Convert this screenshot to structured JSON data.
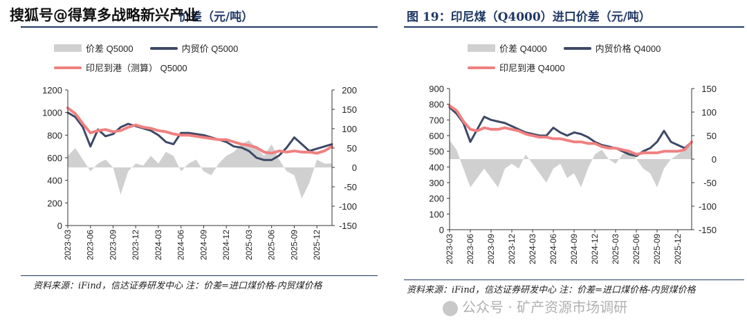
{
  "overlay": {
    "top_watermark": "搜狐号@得算多战略新兴产业",
    "bottom_watermark": "公众号 · 矿产资源市场调研"
  },
  "left": {
    "title": "价差（元/吨）",
    "legend": {
      "spread": "价差 Q5000",
      "domestic": "内贸价 Q5000",
      "landed": "印尼到港（测算） Q5000"
    },
    "source": "资料来源：iFind，信达证券研发中心 注：价差=进口煤价格-内贸煤价格"
  },
  "right": {
    "title": "图 19：印尼煤（Q4000）进口价差（元/吨）",
    "legend": {
      "spread": "价差 Q4000",
      "domestic": "内贸价格 Q4000",
      "landed": "印尼到港 Q4000"
    },
    "source": "资料来源：iFind，信达证券研发中心 注：价差=进口煤价格-内贸煤价格"
  },
  "colors": {
    "spread": "#d0d0d0",
    "domestic": "#3d4865",
    "landed": "#f08080",
    "axis": "#333333"
  },
  "chart_data": [
    {
      "type": "line",
      "title": "价差（元/吨）",
      "x_ticks": [
        "2023-03",
        "2023-06",
        "2023-09",
        "2023-12",
        "2024-03",
        "2024-06",
        "2024-09",
        "2024-12",
        "2025-03",
        "2025-06",
        "2025-09",
        "2025-12"
      ],
      "y_left_ticks": [
        "0",
        "200",
        "400",
        "600",
        "800",
        "1000",
        "1200"
      ],
      "y_right_ticks": [
        "-150",
        "-100",
        "-50",
        "0",
        "50",
        "100",
        "150",
        "200"
      ],
      "ylim_left": [
        0,
        1200
      ],
      "ylim_right": [
        -150,
        200
      ],
      "x": [
        "2023-03",
        "2023-04",
        "2023-05",
        "2023-06",
        "2023-07",
        "2023-08",
        "2023-09",
        "2023-10",
        "2023-11",
        "2023-12",
        "2024-01",
        "2024-02",
        "2024-03",
        "2024-04",
        "2024-05",
        "2024-06",
        "2024-07",
        "2024-08",
        "2024-09",
        "2024-10",
        "2024-11",
        "2024-12",
        "2025-01",
        "2025-02",
        "2025-03",
        "2025-04",
        "2025-05",
        "2025-06",
        "2025-07",
        "2025-08",
        "2025-09",
        "2025-10",
        "2025-11",
        "2025-12",
        "2026-01",
        "2026-02"
      ],
      "series": [
        {
          "name": "价差 Q5000",
          "axis": "right",
          "style": "area",
          "values": [
            30,
            50,
            20,
            -10,
            10,
            20,
            0,
            -70,
            -10,
            10,
            5,
            30,
            10,
            40,
            30,
            -10,
            10,
            20,
            -10,
            -20,
            10,
            30,
            40,
            60,
            70,
            50,
            30,
            60,
            20,
            -10,
            -20,
            -80,
            -40,
            20,
            10,
            10
          ]
        },
        {
          "name": "内贸价 Q5000",
          "axis": "left",
          "style": "line",
          "values": [
            1000,
            960,
            870,
            700,
            850,
            790,
            810,
            870,
            900,
            880,
            860,
            840,
            800,
            740,
            720,
            820,
            820,
            810,
            800,
            780,
            760,
            740,
            700,
            690,
            660,
            600,
            580,
            580,
            620,
            690,
            780,
            720,
            660,
            680,
            700,
            720
          ]
        },
        {
          "name": "印尼到港（测算） Q5000",
          "axis": "left",
          "style": "line",
          "values": [
            1040,
            990,
            900,
            820,
            840,
            850,
            830,
            840,
            870,
            890,
            870,
            860,
            840,
            830,
            810,
            800,
            800,
            790,
            780,
            770,
            760,
            760,
            740,
            720,
            710,
            690,
            650,
            640,
            660,
            650,
            660,
            650,
            650,
            640,
            660,
            700
          ]
        }
      ]
    },
    {
      "type": "line",
      "title": "图 19：印尼煤（Q4000）进口价差（元/吨）",
      "x_ticks": [
        "2023-03",
        "2023-06",
        "2023-09",
        "2023-12",
        "2024-03",
        "2024-06",
        "2024-09",
        "2024-12",
        "2025-03",
        "2025-06",
        "2025-09",
        "2025-12"
      ],
      "y_left_ticks": [
        "0",
        "100",
        "200",
        "300",
        "400",
        "500",
        "600",
        "700",
        "800",
        "900"
      ],
      "y_right_ticks": [
        "-150",
        "-100",
        "-50",
        "0",
        "50",
        "100",
        "150"
      ],
      "ylim_left": [
        0,
        900
      ],
      "ylim_right": [
        -150,
        150
      ],
      "x": [
        "2023-03",
        "2023-04",
        "2023-05",
        "2023-06",
        "2023-07",
        "2023-08",
        "2023-09",
        "2023-10",
        "2023-11",
        "2023-12",
        "2024-01",
        "2024-02",
        "2024-03",
        "2024-04",
        "2024-05",
        "2024-06",
        "2024-07",
        "2024-08",
        "2024-09",
        "2024-10",
        "2024-11",
        "2024-12",
        "2025-01",
        "2025-02",
        "2025-03",
        "2025-04",
        "2025-05",
        "2025-06",
        "2025-07",
        "2025-08",
        "2025-09",
        "2025-10",
        "2025-11",
        "2025-12",
        "2026-01",
        "2026-02"
      ],
      "series": [
        {
          "name": "价差 Q4000",
          "axis": "right",
          "style": "area",
          "values": [
            40,
            20,
            -20,
            -60,
            -40,
            -20,
            -40,
            -60,
            -20,
            -10,
            -20,
            10,
            -10,
            -30,
            -50,
            -20,
            -10,
            -40,
            -30,
            -60,
            -20,
            10,
            20,
            0,
            -10,
            10,
            20,
            0,
            -20,
            -30,
            -60,
            -20,
            0,
            10,
            20,
            30
          ]
        },
        {
          "name": "内贸价格 Q4000",
          "axis": "left",
          "style": "line",
          "values": [
            780,
            740,
            680,
            560,
            640,
            720,
            700,
            690,
            680,
            660,
            640,
            620,
            610,
            600,
            600,
            650,
            620,
            600,
            620,
            610,
            590,
            560,
            540,
            530,
            520,
            500,
            480,
            470,
            500,
            520,
            560,
            630,
            560,
            540,
            520,
            560
          ]
        },
        {
          "name": "印尼到港 Q4000",
          "axis": "left",
          "style": "line",
          "values": [
            790,
            760,
            690,
            640,
            630,
            650,
            640,
            640,
            650,
            640,
            630,
            610,
            600,
            590,
            590,
            580,
            580,
            570,
            560,
            560,
            550,
            550,
            530,
            520,
            520,
            510,
            500,
            480,
            490,
            490,
            490,
            500,
            500,
            500,
            510,
            560
          ]
        }
      ]
    }
  ]
}
